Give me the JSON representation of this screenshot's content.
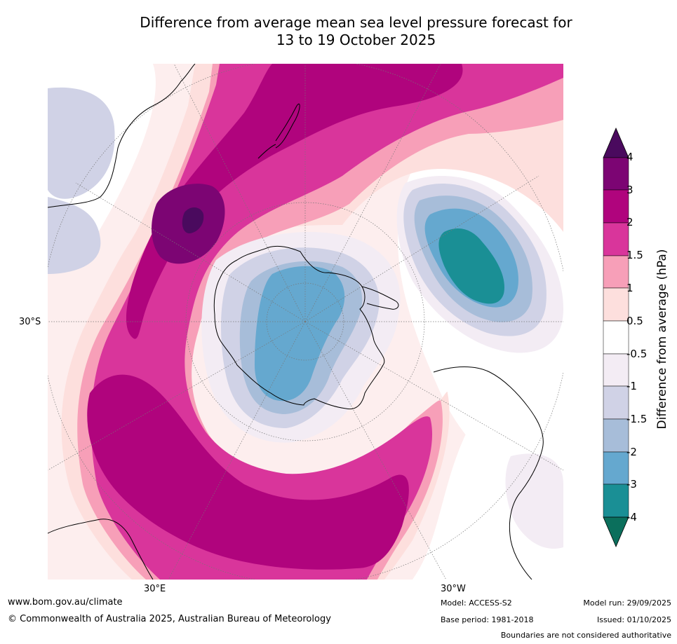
{
  "title": {
    "line1": "Difference from average mean sea level pressure forecast for",
    "line2": "13 to 19 October 2025"
  },
  "map": {
    "projection": "south polar stereographic",
    "lat_labels": [
      "30°S"
    ],
    "lon_labels": [
      "30°E",
      "30°W"
    ]
  },
  "legend": {
    "title": "Difference from average (hPa)",
    "ticks": [
      "4",
      "3",
      "2",
      "1.5",
      "1",
      "0.5",
      "-0.5",
      "-1",
      "-1.5",
      "-2",
      "-3",
      "-4"
    ],
    "colors": {
      "above_4": "#4a0a5e",
      "b3_4": "#7c0573",
      "b2_3": "#b0047d",
      "b1_5_2": "#d9359b",
      "b1_1_5": "#f79fb8",
      "b0_5_1": "#fddfdd",
      "bm0_5_0_5": "#ffffff",
      "bm1_m0_5": "#f3ecf4",
      "bm1_5_m1": "#d0d2e6",
      "bm2_m1_5": "#a7bdd9",
      "bm3_m2": "#65a8cf",
      "bm4_m3": "#1a8f95",
      "below_m4": "#0b6f5c"
    }
  },
  "footer": {
    "website": "www.bom.gov.au/climate",
    "copyright": "© Commonwealth of Australia 2025, Australian Bureau of Meteorology",
    "model": "Model: ACCESS-S2",
    "base_period": "Base period: 1981-2018",
    "model_run": "Model run: 29/09/2025",
    "issued": "Issued: 01/10/2025",
    "disclaimer": "Boundaries are not considered authoritative"
  }
}
